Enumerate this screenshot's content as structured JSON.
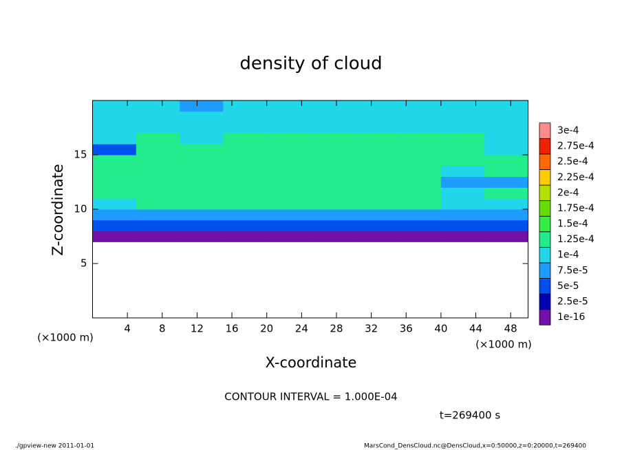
{
  "chart_data": {
    "type": "heatmap",
    "title": "density of cloud",
    "xlabel": "X-coordinate",
    "ylabel": "Z-coordinate",
    "x_unit": "(×1000 m)",
    "y_unit": "(×1000 m)",
    "annotation": "CONTOUR INTERVAL = 1.000E-04",
    "time_label": "t=269400 s",
    "footer_left": "./gpview-new   2011-01-01",
    "footer_right": "MarsCond_DensCloud.nc@DensCloud,x=0:50000,z=0:20000,t=269400",
    "x": [
      2.5,
      7.5,
      12.5,
      17.5,
      22.5,
      27.5,
      32.5,
      37.5,
      42.5,
      47.5
    ],
    "y": [
      0.5,
      1.5,
      2.5,
      3.5,
      4.5,
      5.5,
      6.5,
      7.5,
      8.5,
      9.5,
      10.5,
      11.5,
      12.5,
      13.5,
      14.5,
      15.5,
      16.5,
      17.5,
      18.5,
      19.5
    ],
    "values": [
      [
        null,
        null,
        null,
        null,
        null,
        null,
        null,
        null,
        null,
        null
      ],
      [
        null,
        null,
        null,
        null,
        null,
        null,
        null,
        null,
        null,
        null
      ],
      [
        null,
        null,
        null,
        null,
        null,
        null,
        null,
        null,
        null,
        null
      ],
      [
        null,
        null,
        null,
        null,
        null,
        null,
        null,
        null,
        null,
        null
      ],
      [
        null,
        null,
        null,
        null,
        null,
        null,
        null,
        null,
        null,
        null
      ],
      [
        null,
        null,
        null,
        null,
        null,
        null,
        null,
        null,
        null,
        null
      ],
      [
        null,
        null,
        null,
        null,
        null,
        null,
        null,
        null,
        null,
        null
      ],
      [
        2e-05,
        2e-05,
        2e-05,
        2e-05,
        2e-05,
        2e-05,
        2e-05,
        2e-05,
        2e-05,
        2e-05
      ],
      [
        6e-05,
        6e-05,
        6e-05,
        6e-05,
        6e-05,
        6e-05,
        6e-05,
        6e-05,
        6e-05,
        6e-05
      ],
      [
        9e-05,
        9e-05,
        9e-05,
        9e-05,
        9e-05,
        9e-05,
        9e-05,
        9e-05,
        9e-05,
        9e-05
      ],
      [
        0.00012,
        0.00013,
        0.00013,
        0.00013,
        0.00013,
        0.00013,
        0.00013,
        0.00013,
        0.00011,
        0.00012
      ],
      [
        0.00013,
        0.00013,
        0.00013,
        0.00013,
        0.00013,
        0.00013,
        0.00013,
        0.00013,
        0.00012,
        0.00013
      ],
      [
        0.00013,
        0.00013,
        0.00013,
        0.00013,
        0.00013,
        0.00013,
        0.00013,
        0.00013,
        9e-05,
        8e-05
      ],
      [
        0.00013,
        0.00013,
        0.00013,
        0.00013,
        0.00013,
        0.00013,
        0.00013,
        0.00013,
        0.00012,
        0.00013
      ],
      [
        0.00013,
        0.00013,
        0.00013,
        0.00013,
        0.00013,
        0.00013,
        0.00013,
        0.00013,
        0.00013,
        0.00013
      ],
      [
        6e-05,
        0.00013,
        0.00013,
        0.00013,
        0.00013,
        0.00013,
        0.00013,
        0.00013,
        0.00013,
        0.00012
      ],
      [
        0.00012,
        0.00013,
        0.00011,
        0.00013,
        0.00013,
        0.00013,
        0.00013,
        0.00013,
        0.00013,
        0.00012
      ],
      [
        0.00012,
        0.00012,
        0.00011,
        0.00012,
        0.00012,
        0.00012,
        0.00012,
        0.00012,
        0.00012,
        0.00012
      ],
      [
        0.00012,
        0.00012,
        0.00011,
        0.00011,
        0.00012,
        0.00012,
        0.00012,
        0.00012,
        0.00012,
        0.00012
      ],
      [
        0.00011,
        0.00011,
        8e-05,
        0.0001,
        0.00011,
        0.00011,
        0.00011,
        0.00011,
        0.00011,
        0.00011
      ]
    ],
    "xlim": [
      0,
      50
    ],
    "ylim": [
      0,
      20
    ],
    "xticks": [
      4,
      8,
      12,
      16,
      20,
      24,
      28,
      32,
      36,
      40,
      44,
      48
    ],
    "yticks": [
      5,
      10,
      15
    ],
    "levels": [
      {
        "value": 1e-16,
        "label": "1e-16"
      },
      {
        "value": 2.5e-05,
        "label": "2.5e-5"
      },
      {
        "value": 5e-05,
        "label": "5e-5"
      },
      {
        "value": 7.5e-05,
        "label": "7.5e-5"
      },
      {
        "value": 0.0001,
        "label": "1e-4"
      },
      {
        "value": 0.000125,
        "label": "1.25e-4"
      },
      {
        "value": 0.00015,
        "label": "1.5e-4"
      },
      {
        "value": 0.000175,
        "label": "1.75e-4"
      },
      {
        "value": 0.0002,
        "label": "2e-4"
      },
      {
        "value": 0.000225,
        "label": "2.25e-4"
      },
      {
        "value": 0.00025,
        "label": "2.5e-4"
      },
      {
        "value": 0.000275,
        "label": "2.75e-4"
      },
      {
        "value": 0.0003,
        "label": "3e-4"
      }
    ],
    "colors": [
      "#7210a8",
      "#0000b4",
      "#0050ee",
      "#1e9cff",
      "#22d6ea",
      "#22ec8c",
      "#33ee44",
      "#66dd00",
      "#b4e000",
      "#ffcc00",
      "#ff6a00",
      "#ee2200",
      "#ff8c8c"
    ]
  }
}
